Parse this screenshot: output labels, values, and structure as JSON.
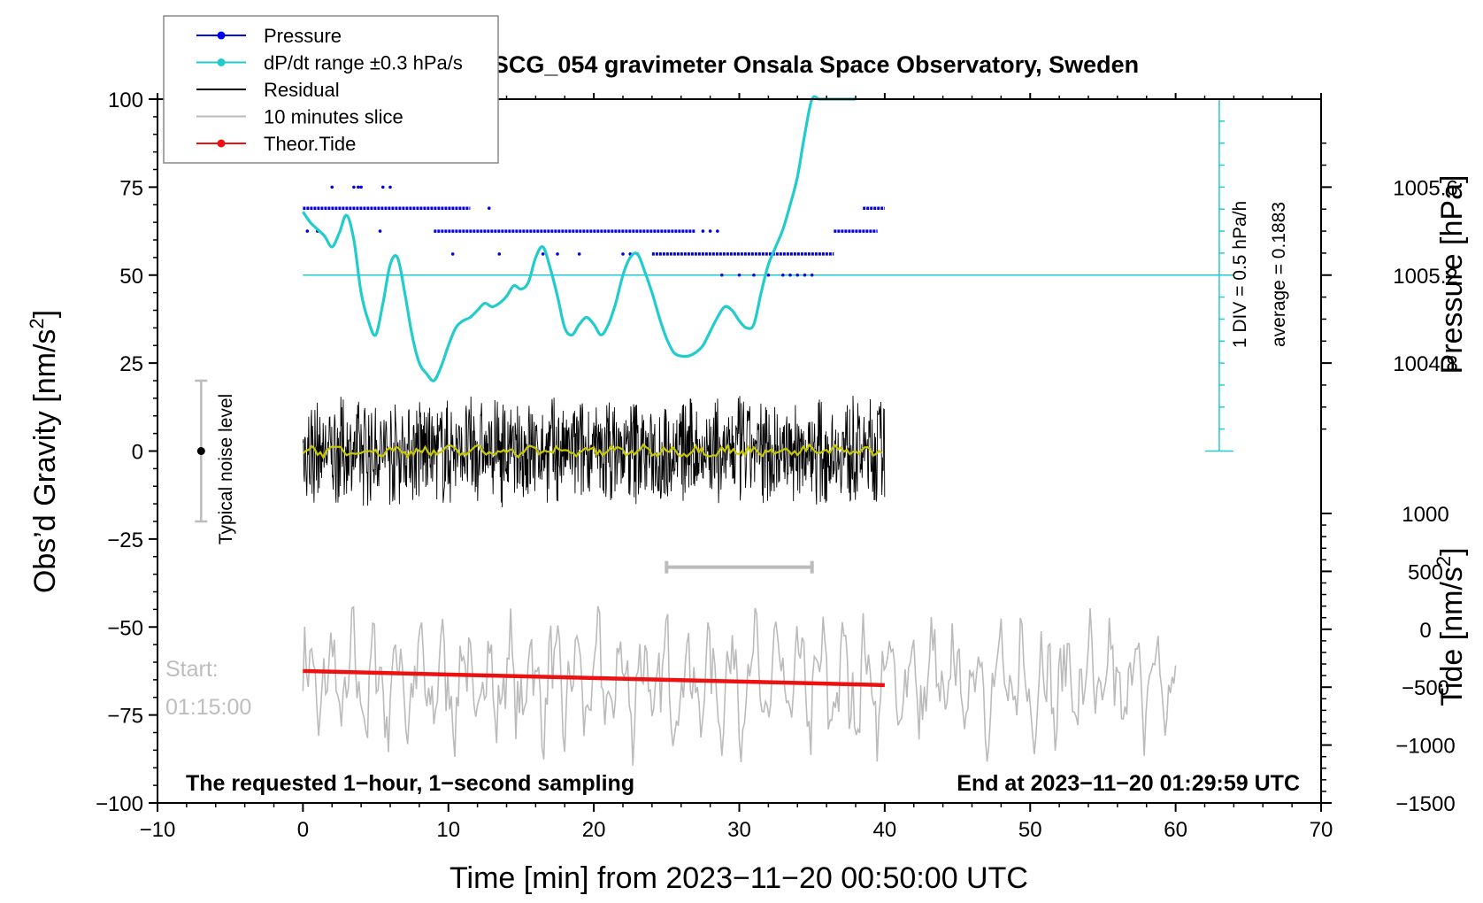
{
  "chart_data": {
    "type": "line",
    "title": "SCG_054 gravimeter Onsala Space Observatory, Sweden",
    "xlabel": "Time [min] from 2023−11−20 00:50:00 UTC",
    "ylabel": "Obs’d Gravity [nm/s",
    "ylabel_sup": "2",
    "ylabel_end": "]",
    "y2label": "Pressure [hPa]",
    "y3label": "Tide [nm/s",
    "y3label_sup": "2",
    "y3label_end": "]",
    "xlim": [
      -10,
      70
    ],
    "ylim": [
      -100,
      100
    ],
    "xticks": [
      -10,
      0,
      10,
      20,
      30,
      40,
      50,
      60,
      70
    ],
    "xtick_labels": [
      "−10",
      "0",
      "10",
      "20",
      "30",
      "40",
      "50",
      "60",
      "70"
    ],
    "yticks": [
      100,
      75,
      50,
      25,
      0,
      -25,
      -50,
      -75,
      -100
    ],
    "ytick_labels": [
      "100",
      "75",
      "50",
      "25",
      "0",
      "−25",
      "−50",
      "−75",
      "−100"
    ],
    "pressure_axis": {
      "ticks": [
        1005.6,
        1005.2,
        1004.8
      ],
      "tick_labels": [
        "1005.6",
        "1005.2",
        "1004.8"
      ],
      "gravity_at_1005_2": 50,
      "gravity_per_hpa": 62.5
    },
    "tide_axis": {
      "ticks": [
        1000,
        500,
        0,
        -500,
        -1000,
        -1500
      ],
      "tick_labels": [
        "1000",
        "500",
        "0",
        "−500",
        "−1000",
        "−1500"
      ],
      "range": [
        -1500,
        1000
      ]
    },
    "legend": {
      "position": "top-left",
      "entries": [
        {
          "label": "Pressure",
          "color": "#0000ee",
          "marker": true
        },
        {
          "label": "dP/dt range ±0.3 hPa/s",
          "color": "#22cccc",
          "marker": true
        },
        {
          "label": "Residual",
          "color": "#000000",
          "marker": false
        },
        {
          "label": "10 minutes slice",
          "color": "#bbbbbb",
          "marker": false
        },
        {
          "label": "Theor.Tide",
          "color": "#ee1111",
          "marker": true
        }
      ]
    },
    "series": [
      {
        "name": "dP/dt range",
        "color": "#22cccc",
        "x": [
          0,
          0.5,
          1,
          1.5,
          2,
          2.5,
          3,
          3.5,
          4,
          4.5,
          5,
          5.5,
          6,
          6.5,
          7,
          7.5,
          8,
          8.5,
          9,
          9.5,
          10,
          10.5,
          11,
          11.5,
          12,
          12.5,
          13,
          13.5,
          14,
          14.5,
          15,
          15.5,
          16,
          16.5,
          17,
          17.5,
          18,
          18.5,
          19,
          19.5,
          20,
          20.5,
          21,
          21.5,
          22,
          22.5,
          23,
          23.5,
          24,
          24.5,
          25,
          25.5,
          26,
          26.5,
          27,
          27.5,
          28,
          28.5,
          29,
          29.5,
          30,
          30.5,
          31,
          31.5,
          32,
          32.5,
          33,
          33.5,
          34,
          34.5,
          35,
          35.5,
          36,
          36.5,
          37,
          37.5,
          38
        ],
        "y": [
          68,
          65,
          63,
          61,
          58,
          62,
          67,
          60,
          45,
          37,
          33,
          42,
          53,
          55,
          45,
          33,
          25,
          22,
          20,
          24,
          30,
          35,
          37,
          38,
          40,
          42,
          41,
          42,
          44,
          47,
          46,
          48,
          55,
          58,
          52,
          44,
          35,
          33,
          36,
          38,
          36,
          33,
          36,
          42,
          50,
          55,
          56,
          51,
          45,
          38,
          32,
          28,
          27,
          27,
          28,
          30,
          34,
          38,
          41,
          40,
          37,
          35,
          36,
          45,
          53,
          58,
          63,
          70,
          78,
          90,
          100,
          100,
          100,
          100,
          100,
          100,
          100
        ]
      },
      {
        "name": "Pressure",
        "color": "#0000ee",
        "segments": [
          {
            "x0": 0,
            "x1": 11.5,
            "y": 69
          },
          {
            "x0": 9,
            "x1": 27,
            "y": 62.5
          },
          {
            "x0": 24,
            "x1": 36.5,
            "y": 56
          },
          {
            "x0": 36.5,
            "x1": 39.5,
            "y": 62.5
          },
          {
            "x0": 38.5,
            "x1": 40,
            "y": 69
          }
        ],
        "scatter_x": [
          2,
          3.5,
          3.8,
          4,
          5.5,
          6,
          0.3,
          1,
          5.3,
          10.3,
          13.5,
          16.5,
          17.5,
          19,
          22,
          22.5,
          23,
          27.5,
          28,
          28.5,
          28.8,
          30,
          31,
          32,
          33,
          33.5,
          34,
          34.5,
          35,
          12.8
        ],
        "scatter_y": [
          75,
          75,
          75,
          75,
          75,
          75,
          62.5,
          62.5,
          62.5,
          56,
          56,
          56,
          56,
          56,
          56,
          56,
          56,
          62.5,
          62.5,
          62.5,
          50,
          50,
          50,
          50,
          50,
          50,
          50,
          50,
          50,
          69
        ]
      },
      {
        "name": "Residual",
        "color": "#000000",
        "x_range": [
          0,
          40
        ],
        "amplitude": 16,
        "smoothed_color": "#c8c800"
      },
      {
        "name": "10 minutes slice",
        "color": "#bbbbbb",
        "x_range": [
          0,
          60
        ],
        "center": -66,
        "amplitude": 18
      },
      {
        "name": "Theor.Tide",
        "color": "#ee1111",
        "x": [
          0,
          40
        ],
        "y": [
          -62.5,
          -66.5
        ]
      }
    ],
    "pressure_scale": {
      "x": 63,
      "top": 100,
      "bottom": 0,
      "div_step": 6.25,
      "baseline_y": 50,
      "baseline_x": [
        0,
        64
      ],
      "label_div": "1 DIV = 0.5 hPa/h",
      "label_avg": "average = 0.1883"
    },
    "slice_marker": {
      "x0": 25,
      "x1": 35,
      "y": -33
    },
    "noise_bar": {
      "x": -7,
      "y_low": -20,
      "y_high": 20,
      "y_center": 0,
      "label": "Typical noise level"
    },
    "annotations": {
      "start_label": "Start:",
      "start_time": "01:15:00",
      "bottom_left": "The requested 1−hour, 1−second sampling",
      "bottom_right": "End at 2023−11−20 01:29:59 UTC"
    }
  }
}
